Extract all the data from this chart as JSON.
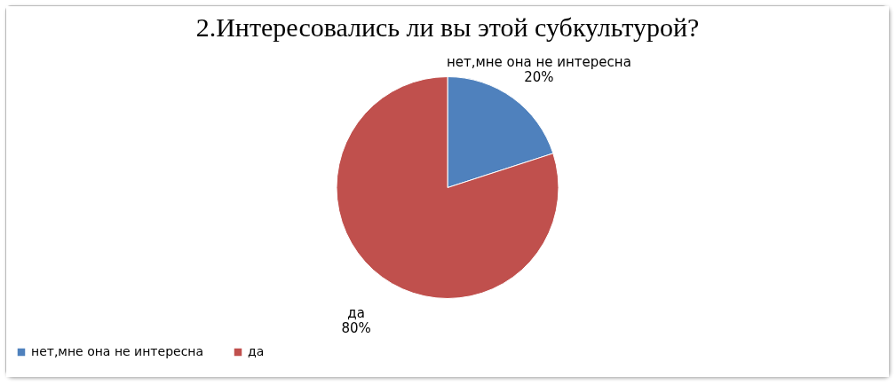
{
  "chart_data": {
    "type": "pie",
    "title": "2.Интересовались  ли вы этой субкультурой?",
    "categories": [
      "нет,мне она не интересна",
      "да"
    ],
    "values": [
      20,
      80
    ],
    "value_labels": [
      "20%",
      "80%"
    ],
    "colors": [
      "#4f81bd",
      "#c0504d"
    ],
    "legend": "bottom"
  }
}
